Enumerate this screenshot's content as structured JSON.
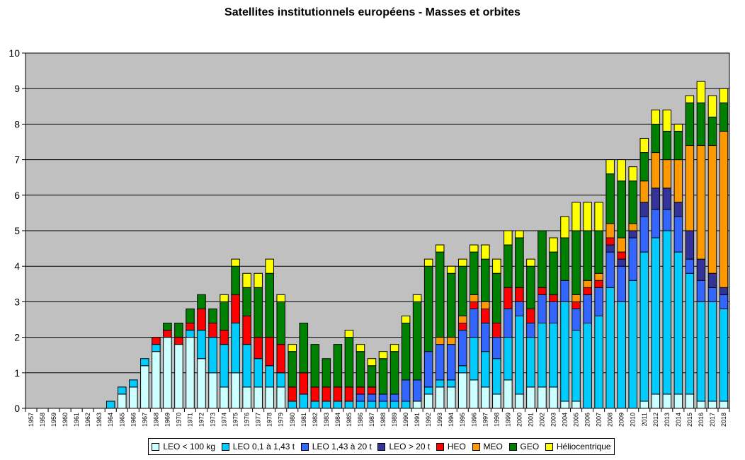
{
  "chart_data": {
    "type": "bar",
    "stacked": true,
    "title": "Satellites institutionnels européens - Masses et orbites",
    "xlabel": "",
    "ylabel": "",
    "ylim": [
      0,
      10
    ],
    "y_ticks": [
      0,
      1,
      2,
      3,
      4,
      5,
      6,
      7,
      8,
      9,
      10
    ],
    "grid": true,
    "legend_position": "bottom",
    "plot_background": "#c0c0c0",
    "categories": [
      "1957",
      "1958",
      "1959",
      "1960",
      "1961",
      "1962",
      "1963",
      "1964",
      "1965",
      "1966",
      "1967",
      "1968",
      "1969",
      "1970",
      "1971",
      "1972",
      "1973",
      "1974",
      "1975",
      "1976",
      "1977",
      "1978",
      "1979",
      "1980",
      "1981",
      "1982",
      "1983",
      "1984",
      "1985",
      "1986",
      "1987",
      "1988",
      "1989",
      "1990",
      "1991",
      "1992",
      "1993",
      "1994",
      "1995",
      "1996",
      "1997",
      "1998",
      "1999",
      "2000",
      "2001",
      "2002",
      "2003",
      "2004",
      "2005",
      "2006",
      "2007",
      "2008",
      "2009",
      "2010",
      "2011",
      "2012",
      "2013",
      "2014",
      "2015",
      "2016",
      "2017",
      "2018"
    ],
    "series": [
      {
        "name": "LEO < 100 kg",
        "color": "#ccffff",
        "values": [
          0,
          0,
          0,
          0,
          0,
          0,
          0,
          0,
          0.4,
          0.6,
          1.2,
          1.6,
          2,
          1.8,
          2,
          1.4,
          1,
          0.6,
          1,
          0.6,
          0.6,
          0.6,
          0.6,
          0,
          0,
          0,
          0,
          0,
          0,
          0,
          0,
          0,
          0,
          0,
          0.2,
          0.4,
          0.6,
          0.6,
          1,
          0.8,
          0.6,
          0.4,
          0.8,
          0.4,
          0.6,
          0.6,
          0.6,
          0.2,
          0.2,
          0,
          0,
          0,
          0,
          0,
          0.2,
          0.4,
          0.4,
          0.4,
          0.4,
          0.2,
          0.2,
          0.2
        ]
      },
      {
        "name": "LEO 0,1 à 1,43 t",
        "color": "#00ccff",
        "values": [
          0,
          0,
          0,
          0,
          0,
          0,
          0,
          0.2,
          0.2,
          0.2,
          0.2,
          0.2,
          0,
          0,
          0.2,
          0.8,
          1,
          1.2,
          1.4,
          1.2,
          0.8,
          0.6,
          0.4,
          0.2,
          0.4,
          0.2,
          0.2,
          0.2,
          0.2,
          0.2,
          0.2,
          0.2,
          0.2,
          0.2,
          0,
          0.2,
          0.2,
          0.2,
          0.2,
          1.2,
          1,
          1,
          1.2,
          2.2,
          1.4,
          1.8,
          1.8,
          2.8,
          2,
          2.4,
          2.6,
          3.4,
          3,
          3.6,
          4.2,
          4.4,
          4.6,
          4,
          3.4,
          2.8,
          2.8,
          2.6
        ]
      },
      {
        "name": "LEO 1,43 à 20 t",
        "color": "#3366ff",
        "values": [
          0,
          0,
          0,
          0,
          0,
          0,
          0,
          0,
          0,
          0,
          0,
          0,
          0,
          0,
          0,
          0,
          0,
          0,
          0,
          0,
          0,
          0,
          0,
          0,
          0,
          0,
          0,
          0,
          0,
          0.2,
          0.2,
          0.2,
          0.2,
          0.6,
          0.6,
          1,
          1,
          1,
          1,
          0.8,
          0.8,
          0.6,
          0.8,
          0.4,
          0.4,
          0.8,
          0.6,
          0.6,
          0.6,
          0.8,
          0.8,
          1,
          1,
          1.2,
          1,
          0.8,
          0.6,
          1,
          0.4,
          0.6,
          0.4,
          0.4
        ]
      },
      {
        "name": "LEO > 20 t",
        "color": "#333399",
        "values": [
          0,
          0,
          0,
          0,
          0,
          0,
          0,
          0,
          0,
          0,
          0,
          0,
          0,
          0,
          0,
          0,
          0,
          0,
          0,
          0,
          0,
          0,
          0,
          0,
          0,
          0,
          0,
          0,
          0,
          0,
          0,
          0,
          0,
          0,
          0,
          0,
          0,
          0,
          0,
          0,
          0,
          0,
          0,
          0,
          0,
          0,
          0,
          0,
          0,
          0,
          0,
          0.2,
          0.2,
          0.2,
          0.4,
          0.6,
          0.6,
          0.4,
          0.8,
          0.6,
          0.4,
          0.2
        ]
      },
      {
        "name": "HEO",
        "color": "#ff0000",
        "values": [
          0,
          0,
          0,
          0,
          0,
          0,
          0,
          0,
          0,
          0,
          0,
          0.2,
          0.2,
          0.2,
          0.2,
          0.6,
          0.4,
          0.4,
          0.8,
          0.8,
          0.6,
          0.8,
          0.8,
          0.4,
          0.6,
          0.4,
          0.4,
          0.4,
          0.4,
          0.2,
          0.2,
          0,
          0,
          0,
          0,
          0,
          0,
          0,
          0.2,
          0.2,
          0.4,
          0.4,
          0.6,
          0.4,
          0.4,
          0.2,
          0.2,
          0,
          0.2,
          0.2,
          0.2,
          0.2,
          0.2,
          0,
          0,
          0,
          0,
          0,
          0,
          0,
          0,
          0
        ]
      },
      {
        "name": "MEO",
        "color": "#ff9900",
        "values": [
          0,
          0,
          0,
          0,
          0,
          0,
          0,
          0,
          0,
          0,
          0,
          0,
          0,
          0,
          0,
          0,
          0,
          0,
          0,
          0,
          0,
          0,
          0,
          0,
          0,
          0,
          0,
          0,
          0,
          0,
          0,
          0,
          0,
          0,
          0,
          0,
          0.2,
          0.2,
          0.2,
          0.2,
          0.2,
          0,
          0,
          0,
          0,
          0,
          0,
          0,
          0.2,
          0.2,
          0.2,
          0.4,
          0.4,
          0.2,
          0.6,
          1,
          0.8,
          1.2,
          2.4,
          3.2,
          3.6,
          4.4
        ]
      },
      {
        "name": "GEO",
        "color": "#008000",
        "values": [
          0,
          0,
          0,
          0,
          0,
          0,
          0,
          0,
          0,
          0,
          0,
          0,
          0.2,
          0.4,
          0.4,
          0.4,
          0.4,
          0.8,
          0.8,
          0.8,
          1.4,
          1.8,
          1.2,
          1,
          1.4,
          1.2,
          0.8,
          1.2,
          1.4,
          1,
          0.6,
          1,
          1.2,
          1.6,
          2.2,
          2.4,
          2.4,
          1.8,
          1.4,
          1.2,
          1.2,
          1.4,
          1.2,
          1.4,
          1.2,
          1.6,
          1.2,
          1.2,
          1.8,
          1.4,
          1.2,
          1.4,
          1.6,
          1.2,
          0.8,
          0.8,
          0.8,
          0.8,
          1.2,
          1.2,
          0.8,
          0.8
        ]
      },
      {
        "name": "Héliocentrique",
        "color": "#ffff00",
        "values": [
          0,
          0,
          0,
          0,
          0,
          0,
          0,
          0,
          0,
          0,
          0,
          0,
          0,
          0,
          0,
          0,
          0,
          0.2,
          0.2,
          0.4,
          0.4,
          0.4,
          0.2,
          0.2,
          0,
          0,
          0,
          0,
          0.2,
          0.2,
          0.2,
          0.2,
          0.2,
          0.2,
          0.2,
          0.2,
          0.2,
          0.2,
          0.2,
          0.2,
          0.4,
          0.4,
          0.4,
          0.2,
          0.2,
          0,
          0.4,
          0.6,
          0.8,
          0.8,
          0.8,
          0.4,
          0.6,
          0.4,
          0.4,
          0.4,
          0.6,
          0.2,
          0.2,
          0.6,
          0.6,
          0.4
        ]
      }
    ]
  }
}
